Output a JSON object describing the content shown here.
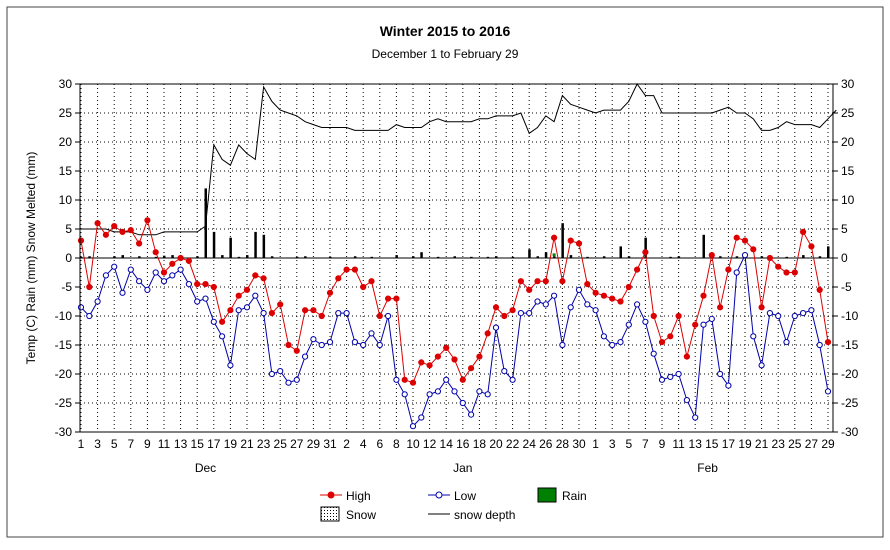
{
  "chart_data": {
    "type": "line",
    "title": "Winter 2015 to 2016",
    "subtitle": "December 1 to February 29",
    "ylabel": "Temp (C) Rain (mm) Snow Melted (mm)",
    "ylim": [
      -30,
      30
    ],
    "yticks": [
      30,
      25,
      20,
      15,
      10,
      5,
      0,
      -5,
      -10,
      -15,
      -20,
      -25,
      -30
    ],
    "xticks": [
      "1",
      "3",
      "5",
      "7",
      "9",
      "11",
      "13",
      "15",
      "17",
      "19",
      "21",
      "23",
      "25",
      "27",
      "29",
      "31",
      "2",
      "4",
      "6",
      "8",
      "10",
      "12",
      "14",
      "16",
      "18",
      "20",
      "22",
      "24",
      "26",
      "28",
      "30",
      "1",
      "3",
      "5",
      "7",
      "9",
      "11",
      "13",
      "15",
      "17",
      "19",
      "21",
      "23",
      "25",
      "27",
      "29"
    ],
    "months": [
      "Dec",
      "Jan",
      "Feb"
    ],
    "legend": {
      "high": "High",
      "low": "Low",
      "rain": "Rain",
      "snow": "Snow",
      "depth": "snow depth"
    },
    "colors": {
      "high": "#dd0000",
      "low": "#0000aa",
      "rain": "#008000",
      "depth": "#000000",
      "grid": "#000000"
    },
    "series": [
      {
        "name": "High",
        "values": [
          3,
          -5,
          6,
          4,
          5.5,
          4.5,
          4.8,
          2.5,
          6.5,
          1,
          -2.5,
          -1,
          0,
          -0.5,
          -4.5,
          -4.5,
          -5,
          -11,
          -9,
          -6.5,
          -5.5,
          -3,
          -3.5,
          -9.5,
          -8,
          -15,
          -16,
          -9,
          -9,
          -10,
          -6,
          -3.5,
          -2,
          -2,
          -5,
          -4,
          -10,
          -7,
          -7,
          -21,
          -21.5,
          -18,
          -18.5,
          -17,
          -15.5,
          -17.5,
          -21,
          -19,
          -17,
          -13,
          -8.5,
          -10,
          -9,
          -4,
          -5.5,
          -4,
          -4,
          3.5,
          -4,
          3,
          2.5,
          -4.5,
          -6,
          -6.5,
          -7,
          -7.5,
          -5,
          -2,
          1,
          -10,
          -14.5,
          -13.5,
          -10,
          -17,
          -11.5,
          -6.5,
          0.5,
          -8.5,
          -2,
          3.5,
          3,
          1.5,
          -8.5,
          0,
          -1.5,
          -2.5,
          -2.5,
          4.5,
          2,
          -5.5,
          -14.5
        ]
      },
      {
        "name": "Low",
        "values": [
          -8.5,
          -10,
          -7.5,
          -3,
          -1.5,
          -6,
          -2,
          -4,
          -5.5,
          -2.5,
          -4,
          -3,
          -2,
          -4.5,
          -7.5,
          -7,
          -11,
          -13.5,
          -18.5,
          -9,
          -8.5,
          -6.5,
          -9.5,
          -20,
          -19.5,
          -21.5,
          -21,
          -17,
          -14,
          -15,
          -14.5,
          -9.5,
          -9.5,
          -14.5,
          -15,
          -13,
          -15,
          -10,
          -21,
          -23.5,
          -29,
          -27.5,
          -23.5,
          -23,
          -21,
          -23,
          -25,
          -27,
          -23,
          -23.5,
          -12,
          -19.5,
          -21,
          -9.5,
          -9.5,
          -7.5,
          -8,
          -6.5,
          -15,
          -8.5,
          -5.5,
          -8,
          -9,
          -13.5,
          -15,
          -14.5,
          -11.5,
          -8,
          -11,
          -16.5,
          -21,
          -20.5,
          -20,
          -24.5,
          -27.5,
          -11.5,
          -10.5,
          -20,
          -22,
          -2.5,
          0.5,
          -13.5,
          -18.5,
          -9.5,
          -10,
          -14.5,
          -10,
          -9.5,
          -9,
          -15,
          -23
        ]
      },
      {
        "name": "snow depth",
        "values": [
          5,
          5,
          5,
          5,
          4.5,
          4.5,
          4.5,
          4,
          4,
          4,
          4.5,
          4.5,
          4.5,
          4.5,
          4.5,
          5.5,
          19.5,
          17,
          16,
          19.5,
          18,
          17,
          29.5,
          27,
          25.5,
          25,
          24.5,
          23.5,
          23,
          22.5,
          22.5,
          22.5,
          22.5,
          22,
          22,
          22,
          22,
          22,
          23,
          22.5,
          22.5,
          22.5,
          23.5,
          24,
          23.5,
          23.5,
          23.5,
          23.5,
          24,
          24,
          24.5,
          24.5,
          24.5,
          25,
          21.5,
          22.5,
          24.5,
          23.5,
          28,
          26.5,
          26,
          25.5,
          25,
          25.5,
          25.5,
          25.5,
          27,
          30,
          28,
          28,
          25,
          25,
          25,
          25,
          25,
          25,
          25,
          25.5,
          26,
          25,
          25,
          24,
          22,
          22,
          22.5,
          23.5,
          23,
          23,
          23,
          22.5,
          24,
          25.5
        ]
      },
      {
        "name": "Rain",
        "values": [
          0,
          0,
          0,
          0,
          0,
          0,
          0,
          0,
          0,
          0,
          0,
          0,
          0,
          0,
          0,
          0,
          0,
          0,
          0,
          0,
          0,
          0,
          0,
          0,
          0,
          0,
          0,
          0,
          0,
          0,
          0,
          0,
          0,
          0,
          0,
          0,
          0,
          0,
          0,
          0,
          0,
          0,
          0,
          0,
          0,
          0,
          0,
          0,
          0,
          0,
          0,
          0,
          0,
          0,
          0,
          0,
          0,
          0.5,
          0,
          0,
          0,
          0,
          0,
          0,
          0,
          0,
          0,
          0,
          0,
          0,
          0,
          0,
          0,
          0,
          0,
          0,
          0,
          0,
          0,
          0,
          0,
          0,
          0,
          0,
          0,
          0,
          0,
          0,
          0,
          0,
          0
        ]
      },
      {
        "name": "Snow",
        "values": [
          0.2,
          0.3,
          0,
          0,
          0.3,
          0.5,
          0,
          0.3,
          0,
          0.2,
          0.4,
          0.5,
          0.3,
          0,
          0.3,
          12,
          4.5,
          0.5,
          3.5,
          0.2,
          0.5,
          4.5,
          4,
          0.3,
          0,
          0,
          0.2,
          0.3,
          0,
          0,
          0.2,
          0,
          0,
          0.3,
          0,
          0.2,
          0,
          0,
          0.5,
          0,
          0.3,
          1,
          0,
          0.2,
          0,
          0.3,
          0,
          0.2,
          0,
          0.2,
          0.3,
          0,
          0.2,
          0,
          1.5,
          0.3,
          1,
          0.3,
          6,
          0.5,
          0,
          0.2,
          0,
          0.3,
          0,
          2,
          0.3,
          0,
          3.5,
          0,
          0,
          0.2,
          0.3,
          0,
          0,
          4,
          0.5,
          0.3,
          0,
          0.3,
          0.5,
          0,
          0.3,
          0.3,
          0,
          0.2,
          0,
          0.5,
          0,
          0.3,
          2
        ]
      }
    ]
  }
}
